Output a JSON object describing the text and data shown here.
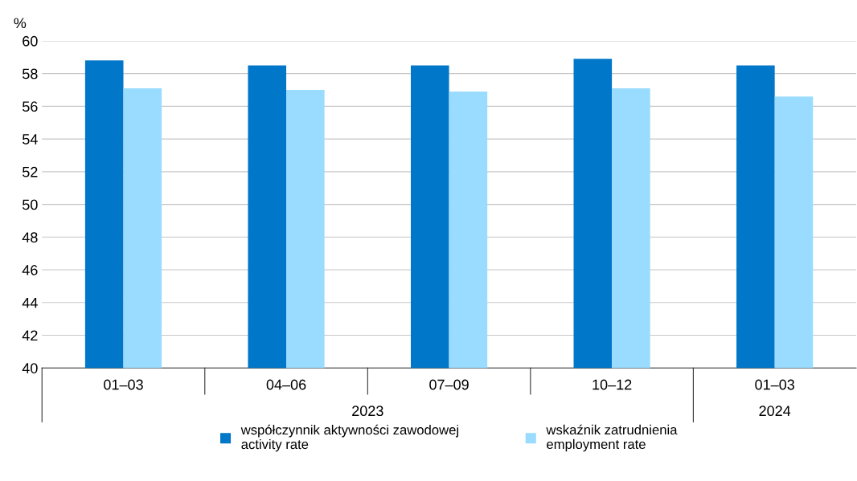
{
  "chart_data": {
    "type": "bar",
    "ylabel": "%",
    "categories": [
      "01–03",
      "04–06",
      "07–09",
      "10–12",
      "01–03"
    ],
    "series": [
      {
        "name": "współczynnik aktywności zawodowej\nactivity rate",
        "color": "#0077c8",
        "values": [
          58.8,
          58.5,
          58.5,
          58.9,
          58.5
        ]
      },
      {
        "name": "wskaźnik zatrudnienia\nemployment rate",
        "color": "#99dcff",
        "values": [
          57.1,
          57.0,
          56.9,
          57.1,
          56.6
        ]
      }
    ],
    "annotations": [
      "2023",
      "2024"
    ],
    "ylim": [
      40,
      60
    ],
    "yticks": [
      40,
      42,
      44,
      46,
      48,
      50,
      52,
      54,
      56,
      58,
      60
    ],
    "grid": "y",
    "legend": "bottom"
  }
}
